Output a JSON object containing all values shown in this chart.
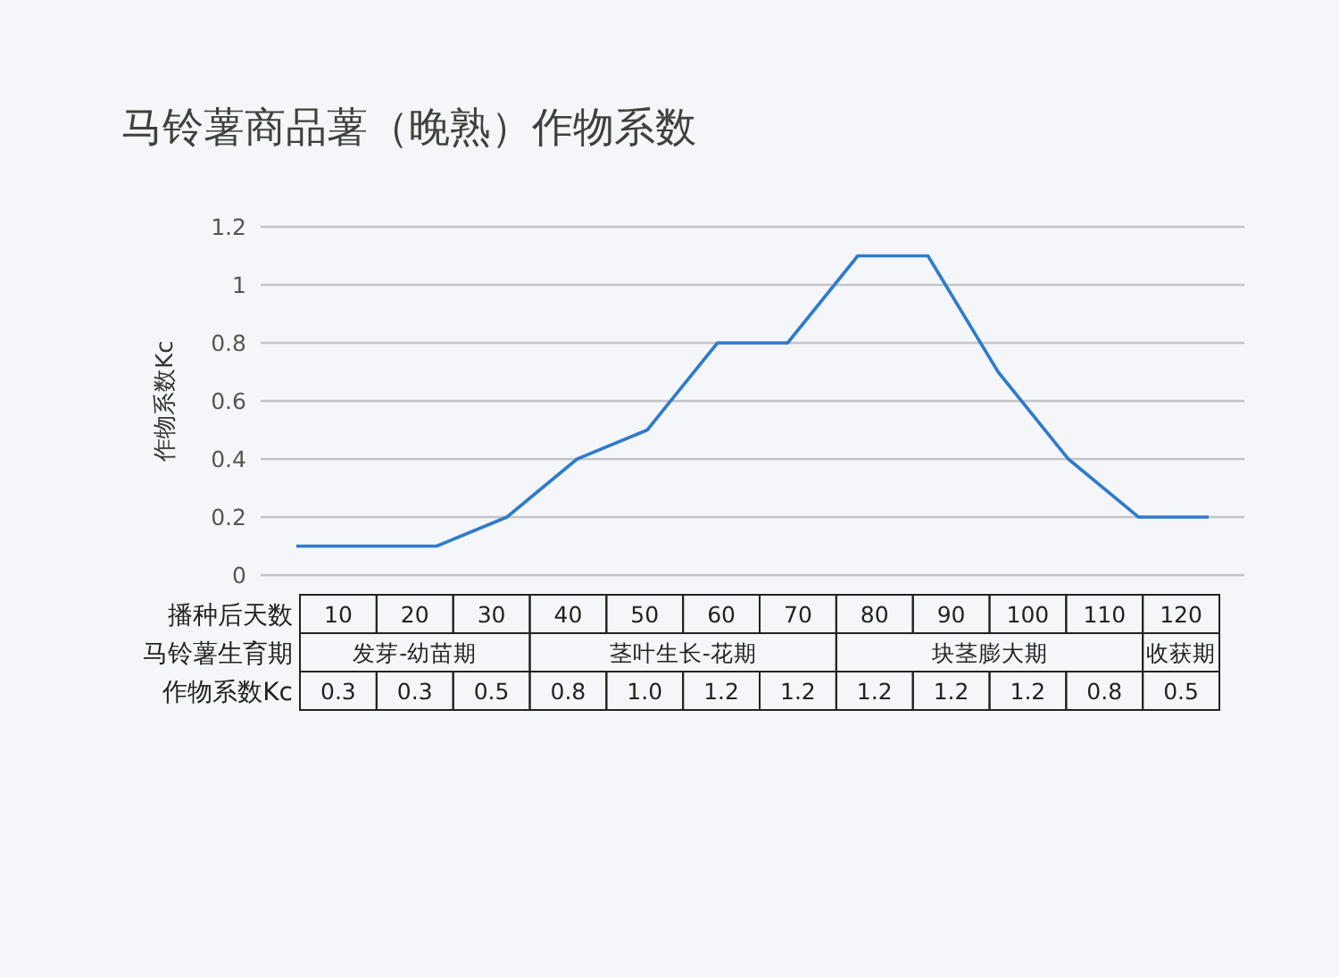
{
  "chart_data": [
    {
      "type": "line",
      "title": "马铃薯商品薯（晚熟）作物系数",
      "ylabel": "作物系数Kc",
      "categories": [
        null,
        null,
        null,
        null,
        null,
        null,
        null,
        null,
        null,
        null,
        null,
        null,
        null,
        null
      ],
      "series": [
        {
          "color": "#2f7bcc",
          "values": [
            0.1,
            0.1,
            0.1,
            0.2,
            0.4,
            0.5,
            0.8,
            0.8,
            1.1,
            1.1,
            0.7,
            0.4,
            0.2,
            0.2
          ]
        }
      ],
      "ylim": [
        0,
        1.2
      ],
      "yticks": [
        0,
        0.2,
        0.4,
        0.6,
        0.8,
        1,
        1.2
      ],
      "grid": "y",
      "marker": "none",
      "line_style": "solid",
      "tick_labels": "y"
    },
    {
      "type": "heatmap",
      "xlabel": "播种后天数",
      "categories": [
        "10",
        "20",
        "30",
        "40",
        "50",
        "60",
        "70",
        "80",
        "90",
        "100",
        "110",
        "120"
      ],
      "y_categories": [
        "马铃薯生育期",
        "作物系数Kc"
      ],
      "cells": [
        [
          null,
          null,
          null,
          null,
          null,
          null,
          null,
          null,
          null,
          null,
          null,
          null
        ],
        [
          null,
          null,
          null,
          null,
          null,
          null,
          null,
          null,
          null,
          null,
          null,
          null
        ]
      ],
      "cell_labels": [
        [
          "发芽-幼苗期",
          null,
          null,
          "茎叶生长-花期",
          null,
          null,
          null,
          "块茎膨大期",
          null,
          null,
          null,
          "收获期"
        ],
        [
          "0.3",
          "0.3",
          "0.5",
          "0.8",
          "1.0",
          "1.2",
          "1.2",
          "1.2",
          "1.2",
          "1.2",
          "0.8",
          "0.5"
        ]
      ]
    }
  ]
}
